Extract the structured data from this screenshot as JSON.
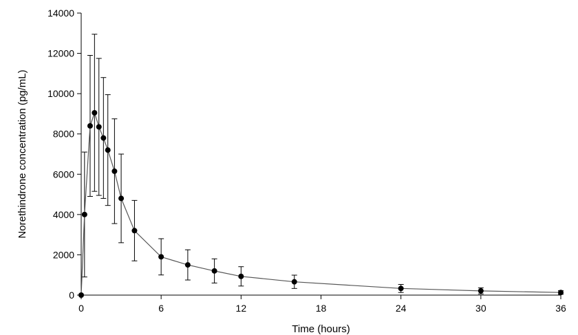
{
  "chart_data": {
    "type": "line",
    "title": "",
    "xlabel": "Time (hours)",
    "ylabel": "Norethindrone concentration (pg/mL)",
    "xlim": [
      0,
      36
    ],
    "ylim": [
      0,
      14000
    ],
    "x_ticks": [
      0,
      6,
      12,
      18,
      24,
      30,
      36
    ],
    "y_ticks": [
      0,
      2000,
      4000,
      6000,
      8000,
      10000,
      12000,
      14000
    ],
    "grid": false,
    "legend": "none",
    "marker": "filled-circle",
    "color": "#000000",
    "line_color": "#555555",
    "series": [
      {
        "x": [
          0,
          0.25,
          0.67,
          1,
          1.33,
          1.67,
          2,
          2.5,
          3,
          4,
          6,
          8,
          10,
          12,
          16,
          24,
          30,
          36
        ],
        "y": [
          0,
          4000,
          8400,
          9050,
          8350,
          7800,
          7200,
          6150,
          4800,
          3200,
          1900,
          1500,
          1200,
          930,
          660,
          330,
          210,
          130
        ],
        "error": [
          0,
          3100,
          3500,
          3900,
          3400,
          3000,
          2750,
          2600,
          2200,
          1500,
          900,
          750,
          600,
          480,
          330,
          200,
          150,
          90
        ]
      }
    ]
  }
}
